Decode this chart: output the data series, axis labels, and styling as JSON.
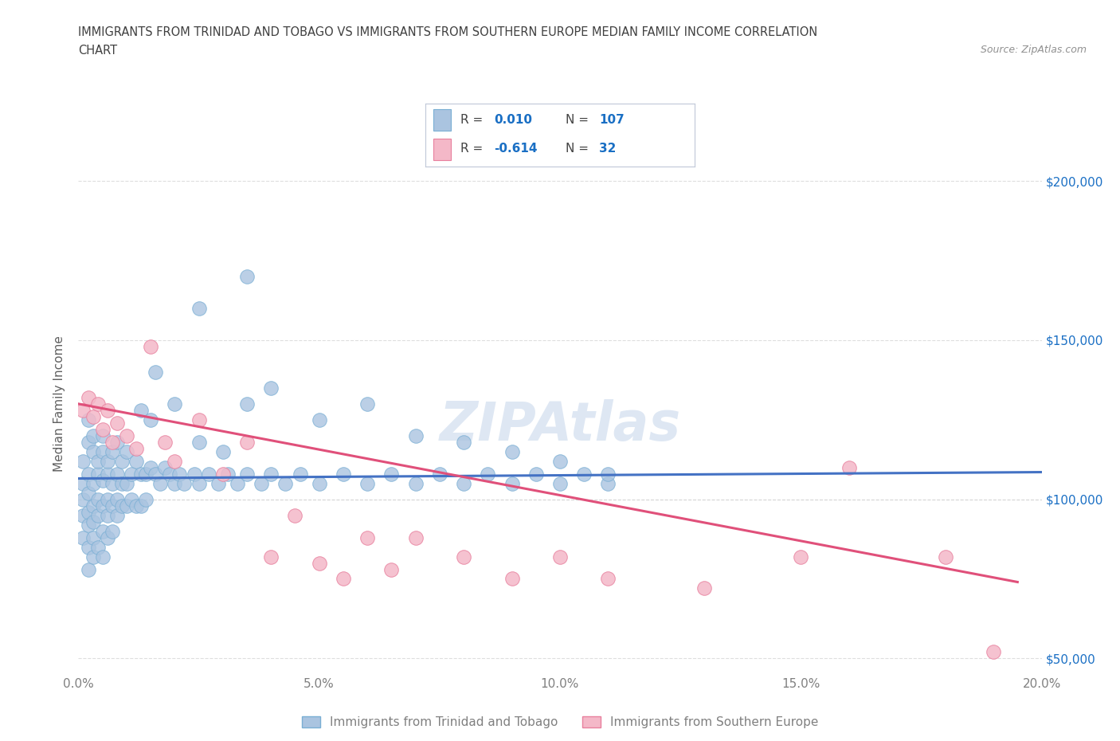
{
  "title_line1": "IMMIGRANTS FROM TRINIDAD AND TOBAGO VS IMMIGRANTS FROM SOUTHERN EUROPE MEDIAN FAMILY INCOME CORRELATION",
  "title_line2": "CHART",
  "source_text": "Source: ZipAtlas.com",
  "ylabel": "Median Family Income",
  "xlim": [
    0.0,
    0.2
  ],
  "ylim": [
    45000,
    215000
  ],
  "yticks": [
    50000,
    100000,
    150000,
    200000
  ],
  "ytick_labels": [
    "$50,000",
    "$100,000",
    "$150,000",
    "$200,000"
  ],
  "xticks": [
    0.0,
    0.05,
    0.1,
    0.15,
    0.2
  ],
  "xtick_labels": [
    "0.0%",
    "5.0%",
    "10.0%",
    "15.0%",
    "20.0%"
  ],
  "series1_color": "#aac4e0",
  "series1_edge_color": "#7aafd4",
  "series2_color": "#f4b8c8",
  "series2_edge_color": "#e8809e",
  "trend1_color": "#4472c4",
  "trend2_color": "#e0507a",
  "R1": 0.01,
  "N1": 107,
  "R2": -0.614,
  "N2": 32,
  "legend_label1": "Immigrants from Trinidad and Tobago",
  "legend_label2": "Immigrants from Southern Europe",
  "watermark": "ZIPAtlas",
  "watermark_color": "#c8d8ec",
  "background_color": "#ffffff",
  "hline_color": "#c8c8c8",
  "title_color": "#404040",
  "axis_label_color": "#606060",
  "tick_color": "#808080",
  "legend_R_color": "#1a6fc4",
  "legend_N_color": "#1a6fc4",
  "series1_x": [
    0.001,
    0.001,
    0.001,
    0.001,
    0.001,
    0.002,
    0.002,
    0.002,
    0.002,
    0.002,
    0.002,
    0.002,
    0.002,
    0.003,
    0.003,
    0.003,
    0.003,
    0.003,
    0.003,
    0.003,
    0.004,
    0.004,
    0.004,
    0.004,
    0.004,
    0.005,
    0.005,
    0.005,
    0.005,
    0.005,
    0.005,
    0.006,
    0.006,
    0.006,
    0.006,
    0.006,
    0.007,
    0.007,
    0.007,
    0.007,
    0.008,
    0.008,
    0.008,
    0.008,
    0.009,
    0.009,
    0.009,
    0.01,
    0.01,
    0.01,
    0.011,
    0.011,
    0.012,
    0.012,
    0.013,
    0.013,
    0.014,
    0.014,
    0.015,
    0.016,
    0.017,
    0.018,
    0.019,
    0.02,
    0.021,
    0.022,
    0.024,
    0.025,
    0.027,
    0.029,
    0.031,
    0.033,
    0.035,
    0.038,
    0.04,
    0.043,
    0.046,
    0.05,
    0.055,
    0.06,
    0.065,
    0.07,
    0.075,
    0.08,
    0.085,
    0.09,
    0.095,
    0.1,
    0.105,
    0.11,
    0.013,
    0.016,
    0.02,
    0.025,
    0.03,
    0.035,
    0.04,
    0.05,
    0.06,
    0.07,
    0.08,
    0.09,
    0.1,
    0.11,
    0.015,
    0.025,
    0.035
  ],
  "series1_y": [
    100000,
    95000,
    105000,
    88000,
    112000,
    102000,
    96000,
    108000,
    92000,
    118000,
    85000,
    125000,
    78000,
    105000,
    98000,
    115000,
    88000,
    120000,
    93000,
    82000,
    108000,
    100000,
    95000,
    112000,
    85000,
    106000,
    98000,
    115000,
    90000,
    120000,
    82000,
    108000,
    100000,
    95000,
    112000,
    88000,
    105000,
    98000,
    115000,
    90000,
    108000,
    100000,
    95000,
    118000,
    105000,
    98000,
    112000,
    105000,
    98000,
    115000,
    108000,
    100000,
    112000,
    98000,
    108000,
    98000,
    108000,
    100000,
    110000,
    108000,
    105000,
    110000,
    108000,
    105000,
    108000,
    105000,
    108000,
    105000,
    108000,
    105000,
    108000,
    105000,
    108000,
    105000,
    108000,
    105000,
    108000,
    105000,
    108000,
    105000,
    108000,
    105000,
    108000,
    105000,
    108000,
    105000,
    108000,
    105000,
    108000,
    105000,
    128000,
    140000,
    130000,
    160000,
    115000,
    170000,
    135000,
    125000,
    130000,
    120000,
    118000,
    115000,
    112000,
    108000,
    125000,
    118000,
    130000
  ],
  "series2_x": [
    0.001,
    0.002,
    0.003,
    0.004,
    0.005,
    0.006,
    0.007,
    0.008,
    0.01,
    0.012,
    0.015,
    0.018,
    0.02,
    0.025,
    0.03,
    0.035,
    0.04,
    0.045,
    0.05,
    0.055,
    0.06,
    0.065,
    0.07,
    0.08,
    0.09,
    0.1,
    0.11,
    0.13,
    0.15,
    0.16,
    0.18,
    0.19
  ],
  "series2_y": [
    128000,
    132000,
    126000,
    130000,
    122000,
    128000,
    118000,
    124000,
    120000,
    116000,
    148000,
    118000,
    112000,
    125000,
    108000,
    118000,
    82000,
    95000,
    80000,
    75000,
    88000,
    78000,
    88000,
    82000,
    75000,
    82000,
    75000,
    72000,
    82000,
    110000,
    82000,
    52000
  ]
}
